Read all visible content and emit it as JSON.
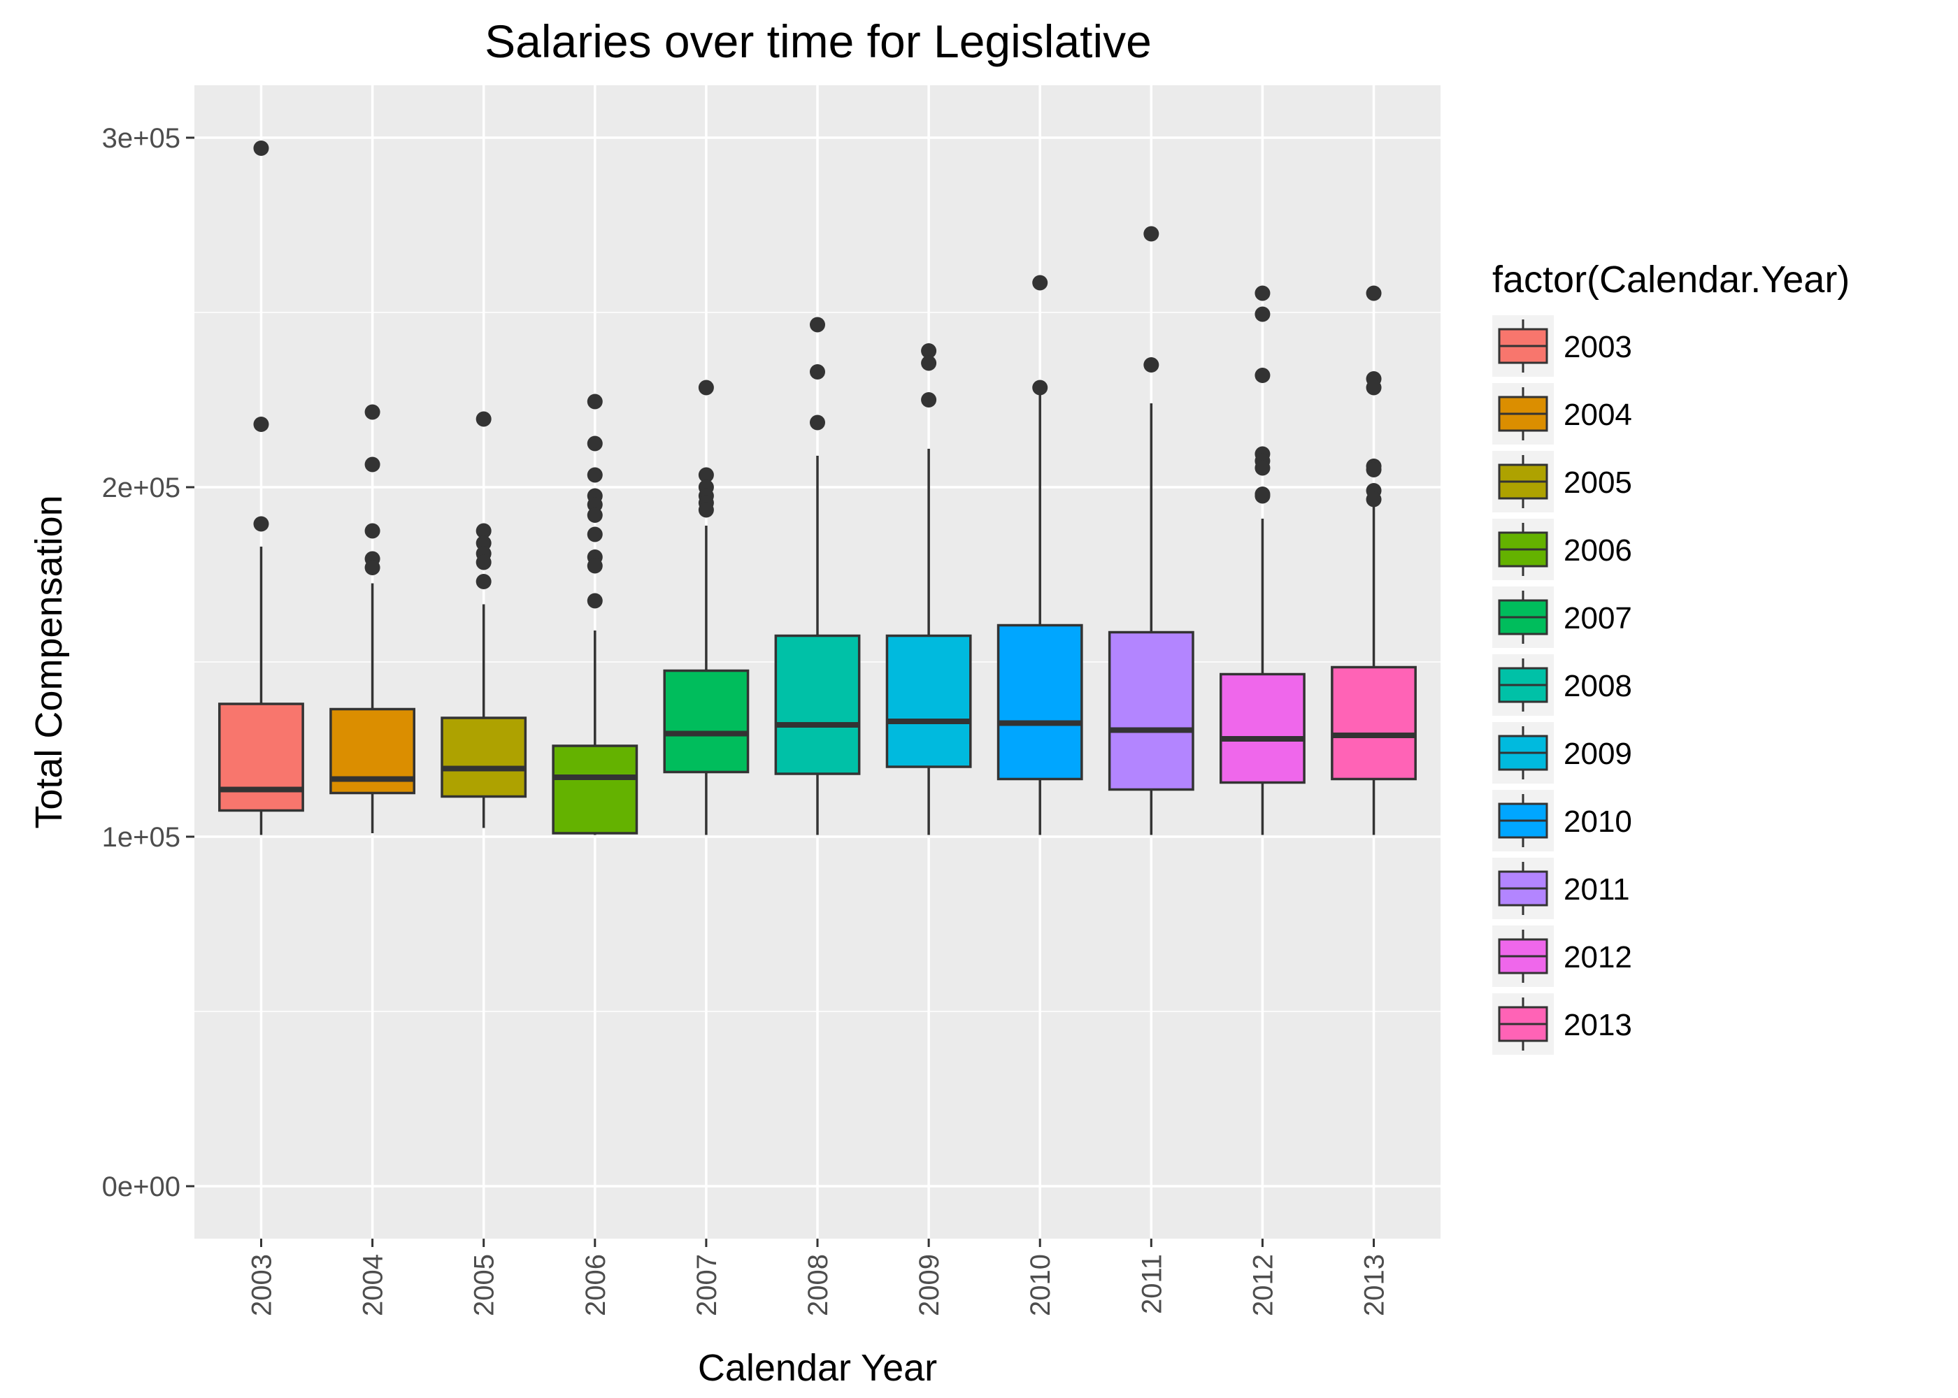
{
  "chart_data": {
    "type": "box",
    "title": "Salaries over time for Legislative",
    "xlabel": "Calendar Year",
    "ylabel": "Total Compensation",
    "legend_title": "factor(Calendar.Year)",
    "legend_position": "right",
    "grid": true,
    "ylim": [
      -15000,
      315000
    ],
    "y_ticks": [
      0,
      100000,
      200000,
      300000
    ],
    "y_tick_labels": [
      "0e+00",
      "1e+05",
      "2e+05",
      "3e+05"
    ],
    "boxes": [
      {
        "category": "2003",
        "color": "#F8766D",
        "min": 100500,
        "q1": 107500,
        "median": 113500,
        "q3": 138000,
        "max": 183000,
        "outliers": [
          297000,
          218000,
          189500
        ]
      },
      {
        "category": "2004",
        "color": "#DB8E00",
        "min": 101000,
        "q1": 112500,
        "median": 116500,
        "q3": 136500,
        "max": 172500,
        "outliers": [
          221500,
          206500,
          187500,
          179500,
          177000
        ]
      },
      {
        "category": "2005",
        "color": "#AEA200",
        "min": 102500,
        "q1": 111500,
        "median": 119500,
        "q3": 134000,
        "max": 166500,
        "outliers": [
          219500,
          187500,
          184000,
          181000,
          178500,
          173000
        ]
      },
      {
        "category": "2006",
        "color": "#64B200",
        "min": 100500,
        "q1": 101000,
        "median": 117000,
        "q3": 126000,
        "max": 159000,
        "outliers": [
          224500,
          212500,
          203500,
          197500,
          195000,
          192000,
          186500,
          180000,
          177500,
          167500
        ]
      },
      {
        "category": "2007",
        "color": "#00BD5C",
        "min": 100500,
        "q1": 118500,
        "median": 129500,
        "q3": 147500,
        "max": 189000,
        "outliers": [
          228500,
          203500,
          200000,
          197500,
          195500,
          193500
        ]
      },
      {
        "category": "2008",
        "color": "#00C1A7",
        "min": 100500,
        "q1": 118000,
        "median": 132000,
        "q3": 157500,
        "max": 209000,
        "outliers": [
          246500,
          233000,
          218500
        ]
      },
      {
        "category": "2009",
        "color": "#00BADE",
        "min": 100500,
        "q1": 120000,
        "median": 133000,
        "q3": 157500,
        "max": 211000,
        "outliers": [
          239000,
          235500,
          225000
        ]
      },
      {
        "category": "2010",
        "color": "#00A6FF",
        "min": 100500,
        "q1": 116500,
        "median": 132500,
        "q3": 160500,
        "max": 227000,
        "outliers": [
          258500,
          228500
        ]
      },
      {
        "category": "2011",
        "color": "#B385FF",
        "min": 100500,
        "q1": 113500,
        "median": 130500,
        "q3": 158500,
        "max": 224000,
        "outliers": [
          272500,
          235000
        ]
      },
      {
        "category": "2012",
        "color": "#EF67EB",
        "min": 100500,
        "q1": 115500,
        "median": 128000,
        "q3": 146500,
        "max": 191000,
        "outliers": [
          255500,
          249500,
          232000,
          209500,
          207500,
          205500,
          198000,
          197500
        ]
      },
      {
        "category": "2013",
        "color": "#FF63B6",
        "min": 100500,
        "q1": 116500,
        "median": 129000,
        "q3": 148500,
        "max": 195000,
        "outliers": [
          255500,
          231000,
          228500,
          206000,
          205000,
          199000,
          196500
        ]
      }
    ]
  }
}
